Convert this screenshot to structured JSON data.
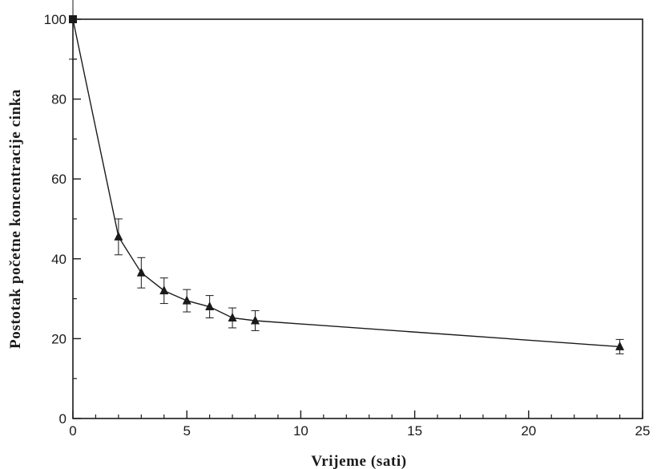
{
  "chart_data": {
    "type": "line",
    "xlabel": "Vrijeme (sati)",
    "ylabel": "Postotak početne koncentracije cinka",
    "xlim": [
      0,
      25
    ],
    "ylim": [
      0,
      100
    ],
    "x_ticks": [
      0,
      5,
      10,
      15,
      20,
      25
    ],
    "x_tick_labels": [
      "0",
      "5",
      "10",
      "15",
      "20",
      "25"
    ],
    "y_ticks": [
      0,
      20,
      40,
      60,
      80,
      100
    ],
    "y_tick_labels": [
      "0",
      "20",
      "40",
      "60",
      "80",
      "100"
    ],
    "grid": false,
    "legend": "none",
    "marker": "triangle",
    "color": "#1a1a1a",
    "series": [
      {
        "points": [
          {
            "x": 0,
            "y": 100,
            "err": 10
          },
          {
            "x": 2,
            "y": 45.5,
            "err": 4.5
          },
          {
            "x": 3,
            "y": 36.5,
            "err": 3.8
          },
          {
            "x": 4,
            "y": 32,
            "err": 3.2
          },
          {
            "x": 5,
            "y": 29.5,
            "err": 2.8
          },
          {
            "x": 6,
            "y": 28,
            "err": 2.8
          },
          {
            "x": 7,
            "y": 25.2,
            "err": 2.5
          },
          {
            "x": 8,
            "y": 24.5,
            "err": 2.5
          },
          {
            "x": 24,
            "y": 18,
            "err": 1.8
          }
        ]
      }
    ]
  }
}
